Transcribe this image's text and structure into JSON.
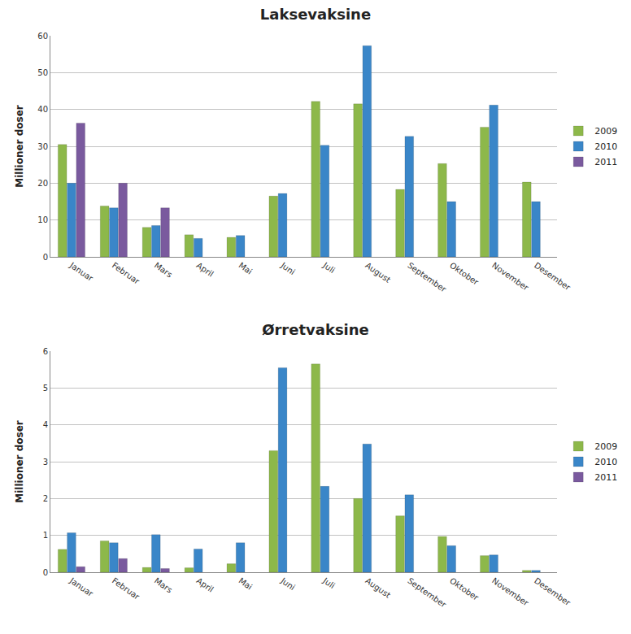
{
  "chart_data": [
    {
      "type": "bar",
      "title": "Laksevaksine",
      "y_label": "Millioner doser",
      "categories": [
        "Januar",
        "Februar",
        "Mars",
        "April",
        "Mai",
        "Juni",
        "Juli",
        "August",
        "September",
        "Oktober",
        "November",
        "Desember"
      ],
      "series": [
        {
          "name": "2009",
          "color": "#8db84a",
          "values": [
            30.5,
            13.8,
            8,
            6,
            5.3,
            16.5,
            42.2,
            41.5,
            18.3,
            25.3,
            35.2,
            20.3
          ]
        },
        {
          "name": "2010",
          "color": "#3a86c8",
          "values": [
            20,
            13.3,
            8.5,
            5,
            5.8,
            17.2,
            30.3,
            57.3,
            32.7,
            15,
            41.2,
            15
          ]
        },
        {
          "name": "2011",
          "color": "#7a5a9e",
          "values": [
            36.3,
            20,
            13.3,
            null,
            null,
            null,
            null,
            null,
            null,
            null,
            null,
            null
          ]
        }
      ],
      "ylim": [
        0,
        60
      ],
      "yticks": [
        0,
        10,
        20,
        30,
        40,
        50,
        60
      ],
      "grid": true,
      "legend": "right"
    },
    {
      "type": "bar",
      "title": "Ørretvaksine",
      "y_label": "Millioner doser",
      "categories": [
        "Januar",
        "Februar",
        "Mars",
        "April",
        "Mai",
        "Juni",
        "Juli",
        "August",
        "September",
        "Oktober",
        "November",
        "Desember"
      ],
      "series": [
        {
          "name": "2009",
          "color": "#8db84a",
          "values": [
            0.62,
            0.85,
            0.13,
            0.12,
            0.23,
            3.3,
            5.65,
            2.0,
            1.53,
            0.97,
            0.45,
            0.05
          ]
        },
        {
          "name": "2010",
          "color": "#3a86c8",
          "values": [
            1.07,
            0.8,
            1.02,
            0.63,
            0.8,
            5.55,
            2.33,
            3.48,
            2.1,
            0.72,
            0.47,
            0.05
          ]
        },
        {
          "name": "2011",
          "color": "#7a5a9e",
          "values": [
            0.15,
            0.37,
            0.1,
            null,
            null,
            null,
            null,
            null,
            null,
            null,
            null,
            null
          ]
        }
      ],
      "ylim": [
        0,
        6
      ],
      "yticks": [
        0,
        1,
        2,
        3,
        4,
        5,
        6
      ],
      "grid": true,
      "legend": "right"
    }
  ]
}
